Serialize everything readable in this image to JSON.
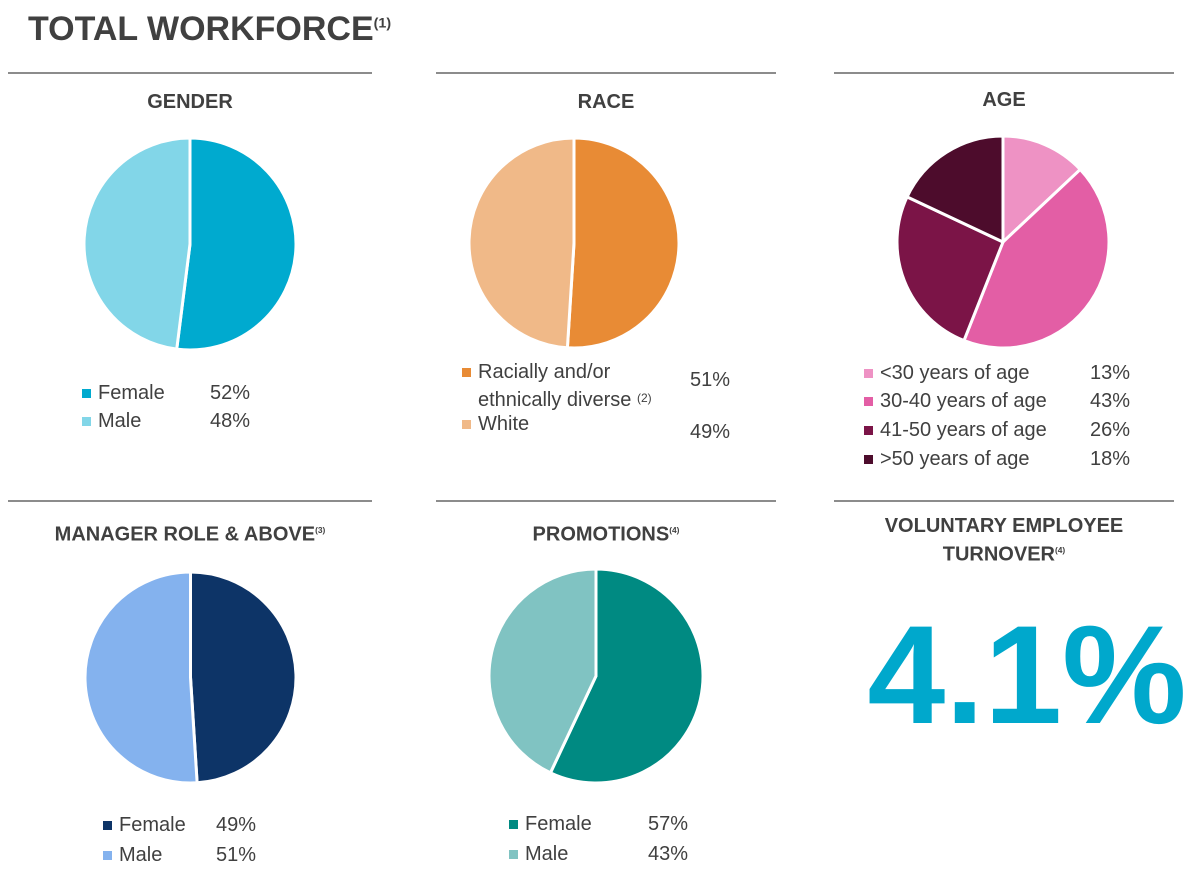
{
  "title": "TOTAL WORKFORCE",
  "title_note": "(1)",
  "chart_data": [
    {
      "type": "pie",
      "title": "GENDER",
      "note": "",
      "categories": [
        "Female",
        "Male"
      ],
      "values": [
        52,
        48
      ],
      "labels": [
        "52%",
        "48%"
      ],
      "colors": [
        "#00aacf",
        "#82d6e8"
      ]
    },
    {
      "type": "pie",
      "title": "RACE",
      "note": "",
      "categories": [
        "Racially and/or ethnically diverse",
        "White"
      ],
      "category_lines": [
        [
          "Racially and/or",
          "ethnically diverse"
        ],
        [
          "White"
        ]
      ],
      "category_notes": [
        "(2)",
        ""
      ],
      "values": [
        51,
        49
      ],
      "labels": [
        "51%",
        "49%"
      ],
      "colors": [
        "#e88b35",
        "#f0b988"
      ]
    },
    {
      "type": "pie",
      "title": "AGE",
      "note": "",
      "categories": [
        "<30 years of age",
        "30-40 years of age",
        "41-50 years of age",
        ">50 years of age"
      ],
      "values": [
        13,
        43,
        26,
        18
      ],
      "labels": [
        "13%",
        "43%",
        "26%",
        "18%"
      ],
      "colors": [
        "#ee92c4",
        "#e35ea5",
        "#7b1447",
        "#4d0c2c"
      ]
    },
    {
      "type": "pie",
      "title": "MANAGER ROLE & ABOVE",
      "note": "(3)",
      "categories": [
        "Female",
        "Male"
      ],
      "values": [
        49,
        51
      ],
      "labels": [
        "49%",
        "51%"
      ],
      "colors": [
        "#0d3467",
        "#84b2ee"
      ]
    },
    {
      "type": "pie",
      "title": "PROMOTIONS",
      "note": "(4)",
      "categories": [
        "Female",
        "Male"
      ],
      "values": [
        57,
        43
      ],
      "labels": [
        "57%",
        "43%"
      ],
      "colors": [
        "#008a82",
        "#80c3c2"
      ]
    }
  ],
  "turnover": {
    "title_line1": "VOLUNTARY EMPLOYEE",
    "title_line2": "TURNOVER",
    "note": "(4)",
    "value": "4.1%",
    "color": "#00a8cc"
  }
}
